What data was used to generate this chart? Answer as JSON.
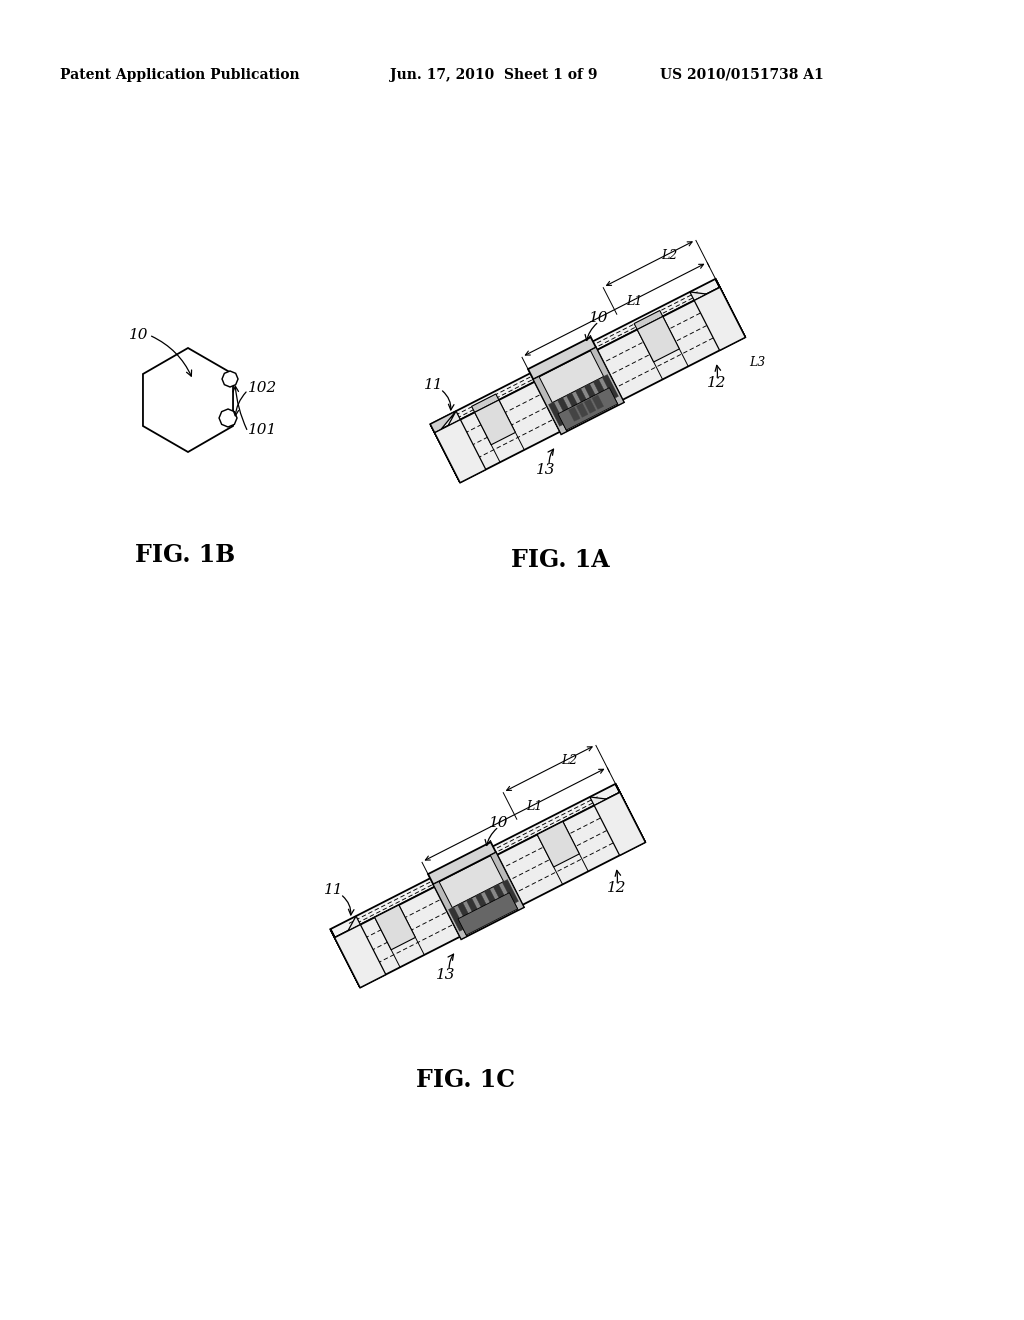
{
  "bg_color": "#ffffff",
  "text_color": "#000000",
  "header_left": "Patent Application Publication",
  "header_center": "Jun. 17, 2010  Sheet 1 of 9",
  "header_right": "US 2010/0151738 A1",
  "fig1a_label": "FIG. 1A",
  "fig1b_label": "FIG. 1B",
  "fig1c_label": "FIG. 1C",
  "line_color": "#000000",
  "face_color": "#ffffff",
  "face_color_light": "#f8f8f8",
  "lw_main": 1.3,
  "lw_thin": 0.7,
  "fs_header": 10,
  "fs_label": 11,
  "fs_fig": 17
}
